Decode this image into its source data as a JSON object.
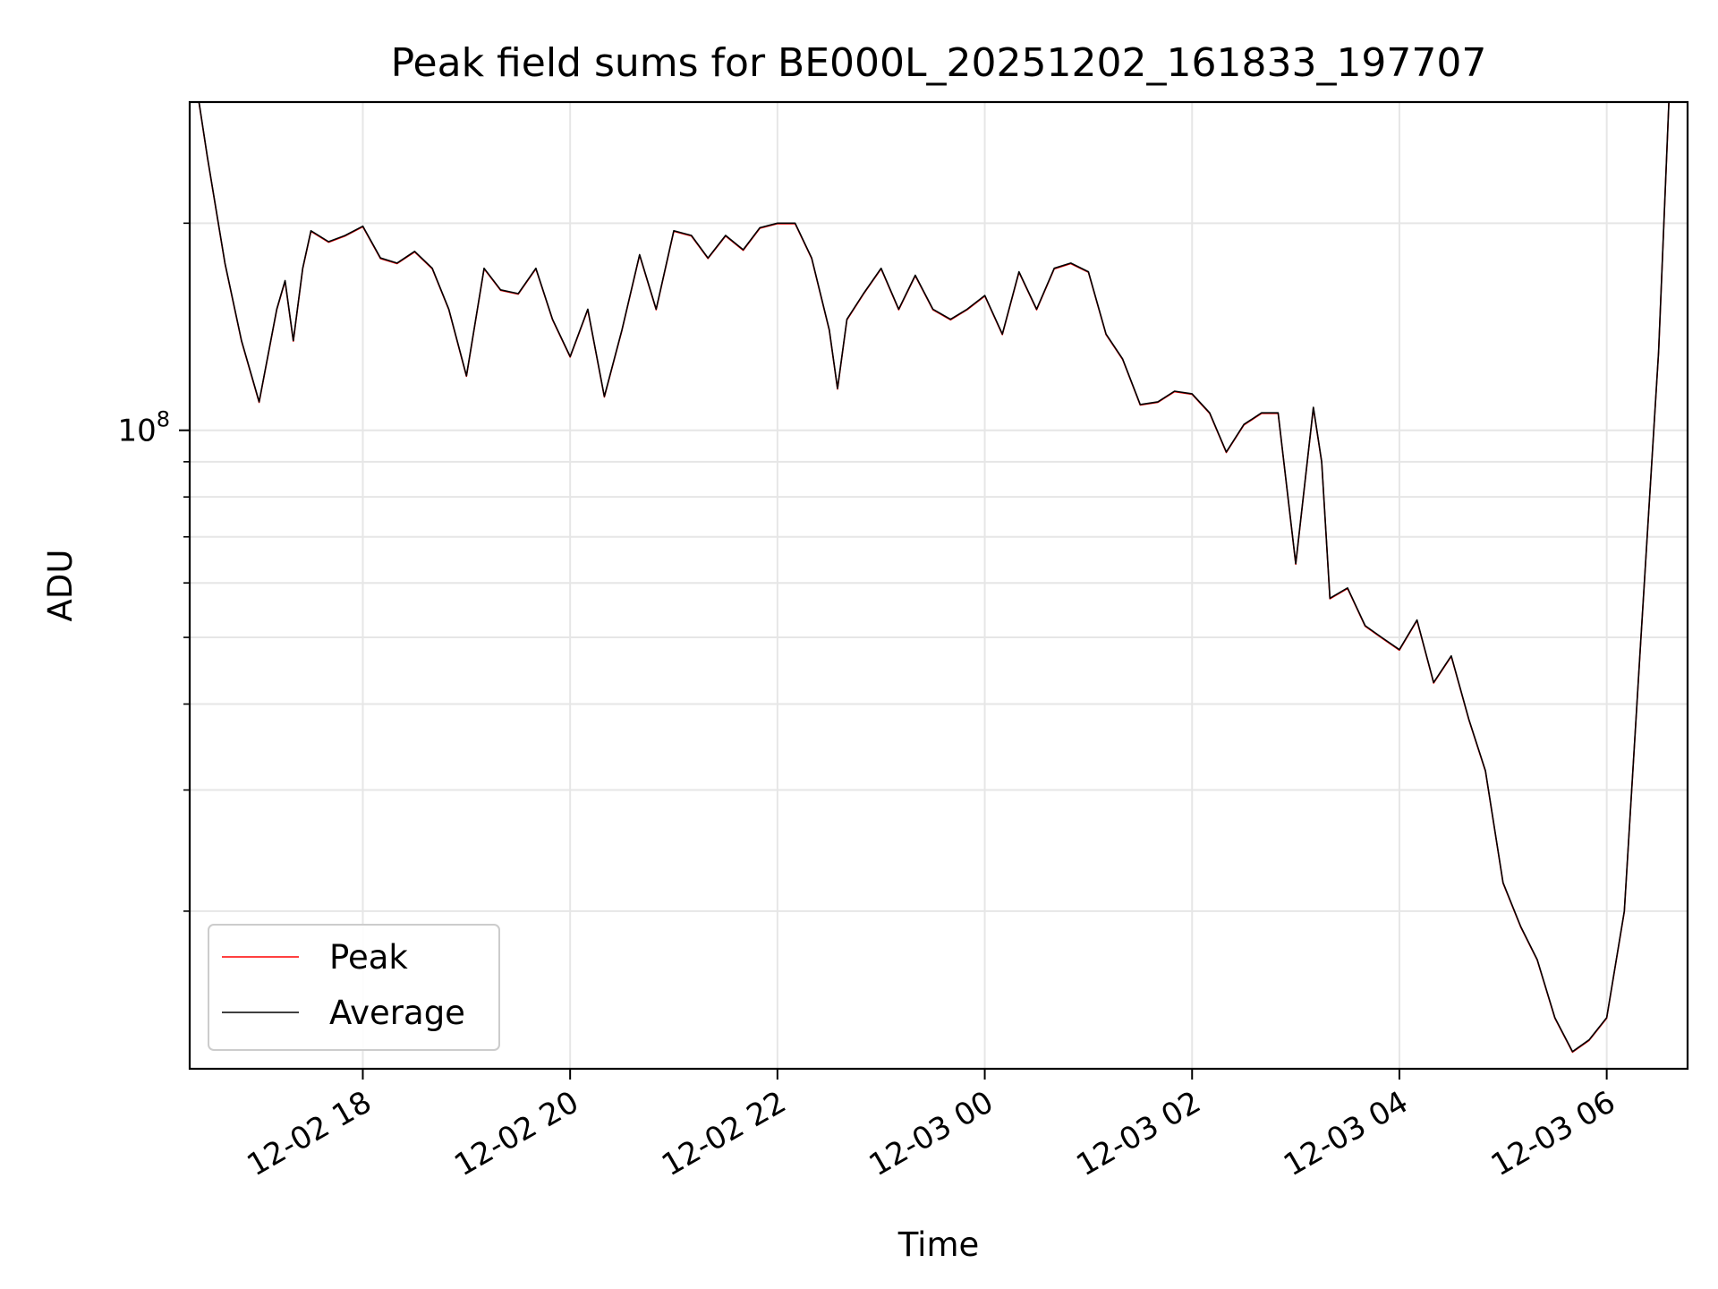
{
  "chart_data": {
    "type": "line",
    "title": "Peak field sums for BE000L_20251202_161833_197707",
    "xlabel": "Time",
    "ylabel": "ADU",
    "yscale": "log",
    "ylim": [
      11800000,
      300000000
    ],
    "xlim_hours": [
      16.33,
      30.78
    ],
    "grid": true,
    "legend_position": "lower-left",
    "x_ticks": [
      {
        "label": "12-02 18",
        "hour": 18
      },
      {
        "label": "12-02 20",
        "hour": 20
      },
      {
        "label": "12-02 22",
        "hour": 22
      },
      {
        "label": "12-03 00",
        "hour": 24
      },
      {
        "label": "12-03 02",
        "hour": 26
      },
      {
        "label": "12-03 04",
        "hour": 28
      },
      {
        "label": "12-03 06",
        "hour": 30
      }
    ],
    "y_major_ticks": [
      {
        "label_base": "10",
        "label_exp": "8",
        "value": 100000000
      }
    ],
    "y_minor_ticks": [
      20000000,
      30000000,
      40000000,
      50000000,
      60000000,
      70000000,
      80000000,
      90000000,
      200000000
    ],
    "x_hours": [
      16.42,
      16.5,
      16.67,
      16.83,
      17.0,
      17.17,
      17.25,
      17.33,
      17.42,
      17.5,
      17.67,
      17.83,
      18.0,
      18.17,
      18.33,
      18.5,
      18.67,
      18.83,
      19.0,
      19.17,
      19.33,
      19.5,
      19.67,
      19.83,
      20.0,
      20.17,
      20.33,
      20.5,
      20.67,
      20.83,
      21.0,
      21.17,
      21.33,
      21.5,
      21.67,
      21.83,
      22.0,
      22.17,
      22.33,
      22.5,
      22.58,
      22.67,
      22.83,
      23.0,
      23.17,
      23.33,
      23.5,
      23.67,
      23.83,
      24.0,
      24.17,
      24.33,
      24.5,
      24.67,
      24.83,
      25.0,
      25.17,
      25.33,
      25.5,
      25.67,
      25.83,
      26.0,
      26.17,
      26.33,
      26.5,
      26.67,
      26.83,
      27.0,
      27.17,
      27.25,
      27.33,
      27.5,
      27.67,
      27.83,
      28.0,
      28.17,
      28.33,
      28.5,
      28.67,
      28.83,
      29.0,
      29.17,
      29.33,
      29.5,
      29.67,
      29.83,
      30.0,
      30.17,
      30.33,
      30.5,
      30.6
    ],
    "series": [
      {
        "name": "Peak",
        "color": "#ff0000",
        "values": [
          300000000,
          250000000,
          175000000,
          135000000,
          110000000,
          150000000,
          165000000,
          135000000,
          172000000,
          195000000,
          188000000,
          192000000,
          198000000,
          178000000,
          175000000,
          182000000,
          172000000,
          150000000,
          120000000,
          172000000,
          160000000,
          158000000,
          172000000,
          145000000,
          128000000,
          150000000,
          112000000,
          140000000,
          180000000,
          150000000,
          195000000,
          192000000,
          178000000,
          192000000,
          183000000,
          197000000,
          200000000,
          200000000,
          178000000,
          140000000,
          115000000,
          145000000,
          158000000,
          172000000,
          150000000,
          168000000,
          150000000,
          145000000,
          150000000,
          157000000,
          138000000,
          170000000,
          150000000,
          172000000,
          175000000,
          170000000,
          138000000,
          127000000,
          109000000,
          110000000,
          114000000,
          113000000,
          106000000,
          93000000,
          102000000,
          106000000,
          106000000,
          64000000,
          108000000,
          90000000,
          57000000,
          59000000,
          52000000,
          50000000,
          48000000,
          53000000,
          43000000,
          47000000,
          38000000,
          32000000,
          22000000,
          19000000,
          17000000,
          14000000,
          12500000,
          13000000,
          14000000,
          20000000,
          50000000,
          130000000,
          300000000
        ]
      },
      {
        "name": "Average",
        "color": "#000000",
        "values": [
          300000000,
          250000000,
          175000000,
          135000000,
          110000000,
          150000000,
          165000000,
          135000000,
          172000000,
          195000000,
          188000000,
          192000000,
          198000000,
          178000000,
          175000000,
          182000000,
          172000000,
          150000000,
          120000000,
          172000000,
          160000000,
          158000000,
          172000000,
          145000000,
          128000000,
          150000000,
          112000000,
          140000000,
          180000000,
          150000000,
          195000000,
          192000000,
          178000000,
          192000000,
          183000000,
          197000000,
          200000000,
          200000000,
          178000000,
          140000000,
          115000000,
          145000000,
          158000000,
          172000000,
          150000000,
          168000000,
          150000000,
          145000000,
          150000000,
          157000000,
          138000000,
          170000000,
          150000000,
          172000000,
          175000000,
          170000000,
          138000000,
          127000000,
          109000000,
          110000000,
          114000000,
          113000000,
          106000000,
          93000000,
          102000000,
          106000000,
          106000000,
          64000000,
          108000000,
          90000000,
          57000000,
          59000000,
          52000000,
          50000000,
          48000000,
          53000000,
          43000000,
          47000000,
          38000000,
          32000000,
          22000000,
          19000000,
          17000000,
          14000000,
          12500000,
          13000000,
          14000000,
          20000000,
          50000000,
          130000000,
          300000000
        ]
      }
    ]
  }
}
